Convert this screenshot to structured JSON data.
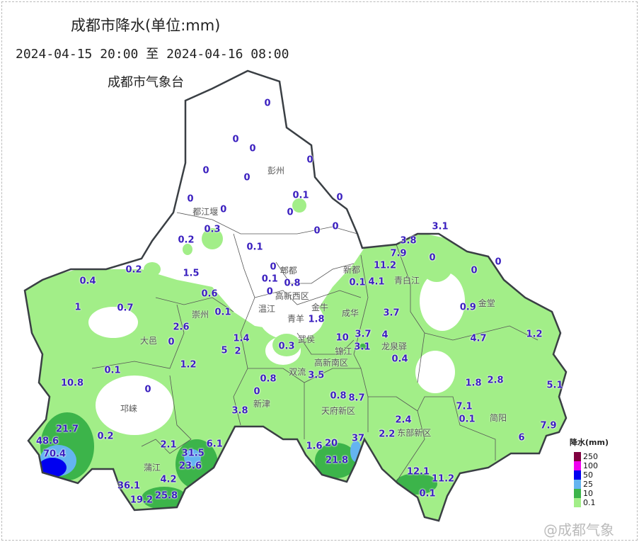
{
  "header": {
    "title": "成都市降水(单位:mm)",
    "period": "2024-04-15 20:00 至 2024-04-16 08:00",
    "organization": "成都市气象台"
  },
  "colors": {
    "level_0_1": "#a2ee88",
    "level_10": "#3cb44a",
    "level_25": "#64b4f0",
    "level_50": "#0000f0",
    "level_100": "#f000f0",
    "level_250": "#800040",
    "label_text": "#3a1fbf",
    "border": "#3a3f44"
  },
  "places": [
    "彭州",
    "都江堰",
    "郫都",
    "新都",
    "青白江",
    "高新西区",
    "温江",
    "金牛",
    "成华",
    "青羊",
    "武侯",
    "锦江",
    "高新南区",
    "双流",
    "龙泉驿",
    "金堂",
    "崇州",
    "大邑",
    "邛崃",
    "新津",
    "天府新区",
    "东部新区",
    "简阳",
    "蒲江"
  ],
  "values": [
    "0",
    "0",
    "0",
    "0",
    "0",
    "0",
    "0",
    "0.1",
    "0",
    "0",
    "0",
    "0.3",
    "0.2",
    "0",
    "0",
    "0.1",
    "3.1",
    "3.8",
    "7.9",
    "11.2",
    "0",
    "0",
    "0",
    "0.2",
    "1.5",
    "0",
    "0.1",
    "0.4",
    "0.6",
    "0",
    "0.8",
    "0.1",
    "4.1",
    "1",
    "0.7",
    "0.1",
    "0.9",
    "3.7",
    "1.8",
    "2.6",
    "1.2",
    "4.7",
    "4",
    "10",
    "3.7",
    "0",
    "1.4",
    "2",
    "5",
    "0.3",
    "3.1",
    "0.4",
    "1.2",
    "0.1",
    "3.5",
    "0.8",
    "10.8",
    "1.8",
    "2.8",
    "5.1",
    "0",
    "0",
    "0.8",
    "8.7",
    "7.1",
    "0.1",
    "3.8",
    "2.4",
    "2.2",
    "7.9",
    "6",
    "21.7",
    "0.2",
    "48.6",
    "70.4",
    "2.1",
    "6.1",
    "31.5",
    "1.6",
    "20",
    "37",
    "23.6",
    "21.8",
    "12.1",
    "11.2",
    "4.2",
    "36.1",
    "25.8",
    "19.2",
    "0.1"
  ],
  "legend": {
    "title": "降水(mm)",
    "levels": [
      "250",
      "100",
      "50",
      "25",
      "10",
      "0.1"
    ]
  },
  "watermark": "@成都气象"
}
